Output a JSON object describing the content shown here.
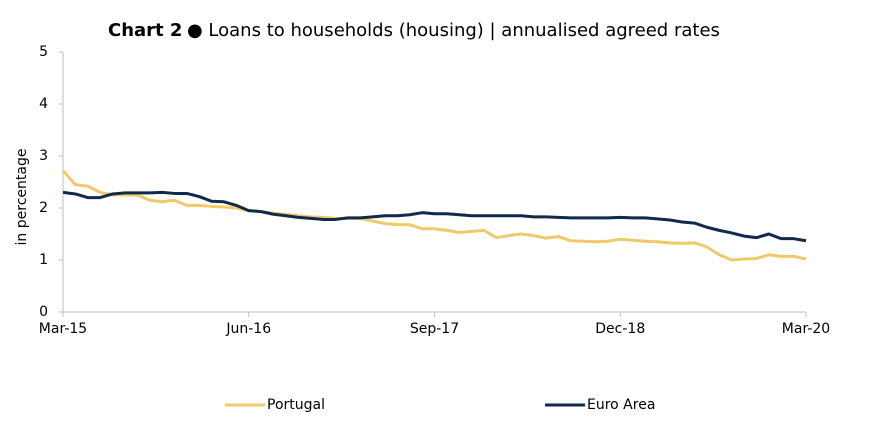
{
  "chart_data": {
    "type": "line",
    "title_label": "Chart 2",
    "title": "● Loans to households (housing) | annualised agreed rates",
    "y_label": "in percentage",
    "categories": [
      "Mar-15",
      null,
      null,
      null,
      null,
      null,
      null,
      null,
      null,
      null,
      null,
      null,
      null,
      null,
      null,
      "Jun-16",
      null,
      null,
      null,
      null,
      null,
      null,
      null,
      null,
      null,
      null,
      null,
      null,
      null,
      null,
      "Sep-17",
      null,
      null,
      null,
      null,
      null,
      null,
      null,
      null,
      null,
      null,
      null,
      null,
      null,
      null,
      "Dec-18",
      null,
      null,
      null,
      null,
      null,
      null,
      null,
      null,
      null,
      null,
      null,
      null,
      null,
      null,
      "Mar-20"
    ],
    "series": [
      {
        "name": "Portugal",
        "color": "#f0c96a",
        "values": [
          2.72,
          2.45,
          2.42,
          2.3,
          2.25,
          2.25,
          2.25,
          2.15,
          2.12,
          2.15,
          2.05,
          2.05,
          2.03,
          2.02,
          2.0,
          1.95,
          1.93,
          1.9,
          1.88,
          1.85,
          1.83,
          1.82,
          1.8,
          1.8,
          1.8,
          1.75,
          1.7,
          1.68,
          1.68,
          1.6,
          1.6,
          1.57,
          1.53,
          1.55,
          1.57,
          1.43,
          1.47,
          1.5,
          1.47,
          1.42,
          1.45,
          1.37,
          1.36,
          1.35,
          1.36,
          1.4,
          1.38,
          1.36,
          1.35,
          1.33,
          1.32,
          1.33,
          1.25,
          1.1,
          1.0,
          1.02,
          1.03,
          1.1,
          1.07,
          1.07,
          1.02
        ]
      },
      {
        "name": "Euro Area",
        "color": "#0f2a4a",
        "values": [
          2.3,
          2.27,
          2.2,
          2.2,
          2.27,
          2.29,
          2.29,
          2.29,
          2.3,
          2.28,
          2.28,
          2.22,
          2.13,
          2.12,
          2.05,
          1.95,
          1.93,
          1.88,
          1.85,
          1.82,
          1.8,
          1.78,
          1.78,
          1.81,
          1.81,
          1.83,
          1.85,
          1.85,
          1.87,
          1.91,
          1.89,
          1.89,
          1.87,
          1.85,
          1.85,
          1.85,
          1.85,
          1.85,
          1.83,
          1.83,
          1.82,
          1.81,
          1.81,
          1.81,
          1.81,
          1.82,
          1.81,
          1.81,
          1.79,
          1.77,
          1.73,
          1.71,
          1.63,
          1.57,
          1.52,
          1.46,
          1.43,
          1.5,
          1.41,
          1.41,
          1.37
        ]
      }
    ],
    "ylim": [
      0,
      5
    ],
    "yticks": [
      0,
      1,
      2,
      3,
      4,
      5
    ],
    "grid": false
  }
}
